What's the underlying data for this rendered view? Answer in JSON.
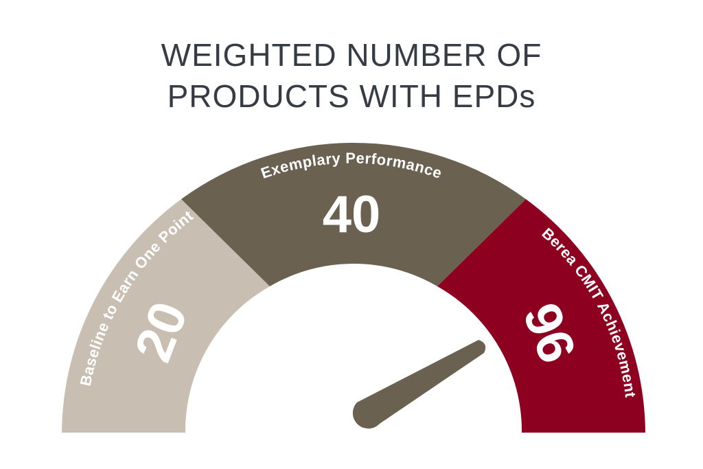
{
  "title": {
    "line1": "WEIGHTED NUMBER OF",
    "line2": "PRODUCTS WITH EPDs"
  },
  "chart_data": {
    "type": "gauge",
    "segments": [
      {
        "label": "Baseline to Earn One Point",
        "value": "20",
        "color": "#c8bfb2"
      },
      {
        "label": "Exemplary Performance",
        "value": "40",
        "color": "#6b6151"
      },
      {
        "label": "Berea CMIT Achievement",
        "value": "96",
        "color": "#8e0020"
      }
    ],
    "needle_color": "#6b6151"
  }
}
